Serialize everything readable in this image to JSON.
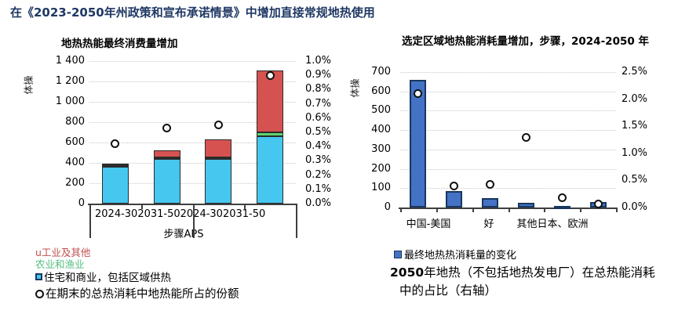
{
  "page_title": "在《2023-2050年州政策和宣布承诺情景》中增加直接常规地热使用",
  "accent_color": "#1F3864",
  "chart_data": [
    {
      "type": "bar",
      "subtype": "stacked-bars-with-share-dots",
      "title": "地热热能最终消费量增加",
      "ylabel": "体操",
      "grid": "horizontal-dotted",
      "categories": [
        "2024-30",
        "2031-50",
        "2024-30",
        "2031-50"
      ],
      "group_labels": [
        "步骤",
        "APS"
      ],
      "series": [
        {
          "name": "住宅和商业，包括区域供热",
          "color": "#45C7EF",
          "values": [
            360,
            435,
            435,
            660
          ]
        },
        {
          "name": "农业和渔业",
          "color": "#5ED36F",
          "values": [
            15,
            20,
            20,
            40
          ]
        },
        {
          "name": "工业及其他",
          "color": "#D65251",
          "values": [
            20,
            65,
            175,
            610
          ]
        }
      ],
      "totals": [
        395,
        520,
        630,
        1310
      ],
      "share_dots": {
        "name": "在期末的总热消耗中地热能所占的份额",
        "axis": "right",
        "values": [
          0.42,
          0.53,
          0.55,
          0.9
        ]
      },
      "left_axis": {
        "min": 0,
        "max": 1400,
        "tick_labels": [
          "1 400",
          "1 200",
          "1 000",
          "800",
          "600",
          "400",
          "200",
          "0"
        ]
      },
      "right_axis": {
        "min": 0,
        "max": 1.0,
        "tick_labels": [
          "1.0%",
          "0.9%",
          "0.8%",
          "0.7%",
          "0.6%",
          "0.5%",
          "0.4%",
          "0.3%",
          "0.2%",
          "0.1%",
          "0.0%"
        ]
      },
      "x_label_runs": [
        {
          "text": "2024-302031-502024-302031-50",
          "left": 7,
          "row": 0
        },
        {
          "text": "步骤APS",
          "center": 120,
          "row": 1
        }
      ]
    },
    {
      "type": "bar",
      "subtype": "bars-with-share-dots",
      "title": "选定区域地热能消耗量增加，步骤，2024-2050 年",
      "ylabel": "体操",
      "grid": "horizontal-dotted",
      "x_labels_visible": [
        "中国-美国",
        "好",
        "其他日本、欧洲"
      ],
      "bars": {
        "name": "最终地热热消耗量的变化",
        "color": "#4472C4",
        "values": [
          660,
          85,
          50,
          25,
          8,
          27
        ]
      },
      "share_dots": {
        "name": "2050年地热在总热能消耗中的占比（右轴）",
        "axis": "right",
        "values": [
          2.1,
          0.4,
          0.43,
          1.3,
          0.18,
          0.07
        ]
      },
      "left_axis": {
        "min": 0,
        "max": 700,
        "tick_labels": [
          "700",
          "600",
          "500",
          "400",
          "300",
          "200",
          "100",
          "0"
        ]
      },
      "right_axis": {
        "min": 0,
        "max": 2.5,
        "tick_labels": [
          "2.5%",
          "2.0%",
          "1.5%",
          "1.0%",
          "0.5%",
          "0.0%"
        ]
      },
      "x_label_runs": [
        {
          "text": "中国-美国",
          "center": 36,
          "row": 0
        },
        {
          "text": "好",
          "center": 113,
          "row": 0
        },
        {
          "text": "其他日本、欧洲",
          "center": 194,
          "row": 0
        }
      ]
    }
  ],
  "left_legend": {
    "items": [
      {
        "text": "u工业及其他",
        "color": "#C0504D",
        "marker": "none"
      },
      {
        "text": "农业和渔业",
        "color": "#52BE80",
        "marker": "none"
      },
      {
        "text": "住宅和商业，包括区域供热",
        "color": "#000000",
        "marker": "cyan-square"
      },
      {
        "text": "在期末的总热消耗中地热能所占的份额",
        "color": "#000000",
        "marker": "white-ring"
      }
    ]
  },
  "right_legend": {
    "item_text": "最终地热热消耗量的变化",
    "item_marker": "blue-square",
    "caption_bold": "2050",
    "caption_rest": "年地热（不包括地热发电厂）在总热能消耗中的占比（右轴）"
  }
}
